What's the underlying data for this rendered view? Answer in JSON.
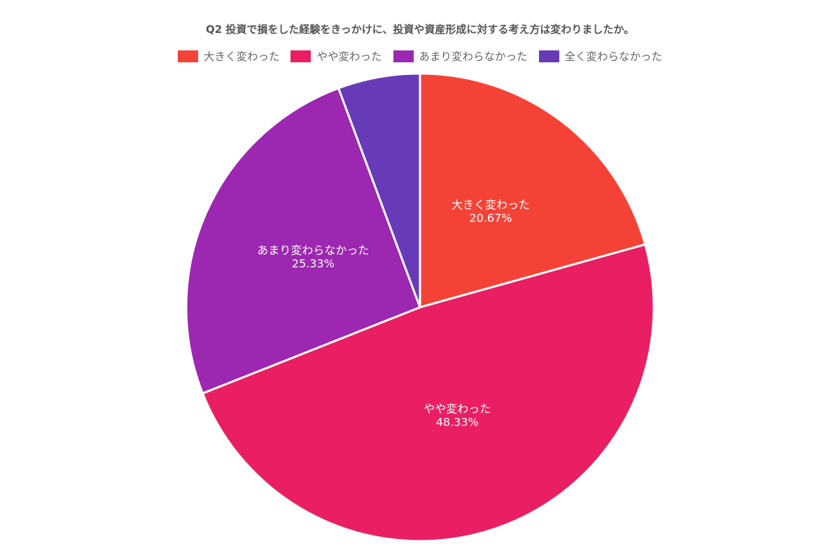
{
  "chart_data": {
    "type": "pie",
    "title": "Q2 投資で損をした経験をきっかけに、投資や資産形成に対する考え方は変わりましたか。",
    "legend_position": "top",
    "series": [
      {
        "name": "大きく変わった",
        "value": 20.67,
        "value_label": "20.67%",
        "color": "#F44336"
      },
      {
        "name": "やや変わった",
        "value": 48.33,
        "value_label": "48.33%",
        "color": "#E91E63"
      },
      {
        "name": "あまり変わらなかった",
        "value": 25.33,
        "value_label": "25.33%",
        "color": "#9C27B0"
      },
      {
        "name": "全く変わらなかった",
        "value": 5.67,
        "color": "#673AB7"
      }
    ]
  }
}
